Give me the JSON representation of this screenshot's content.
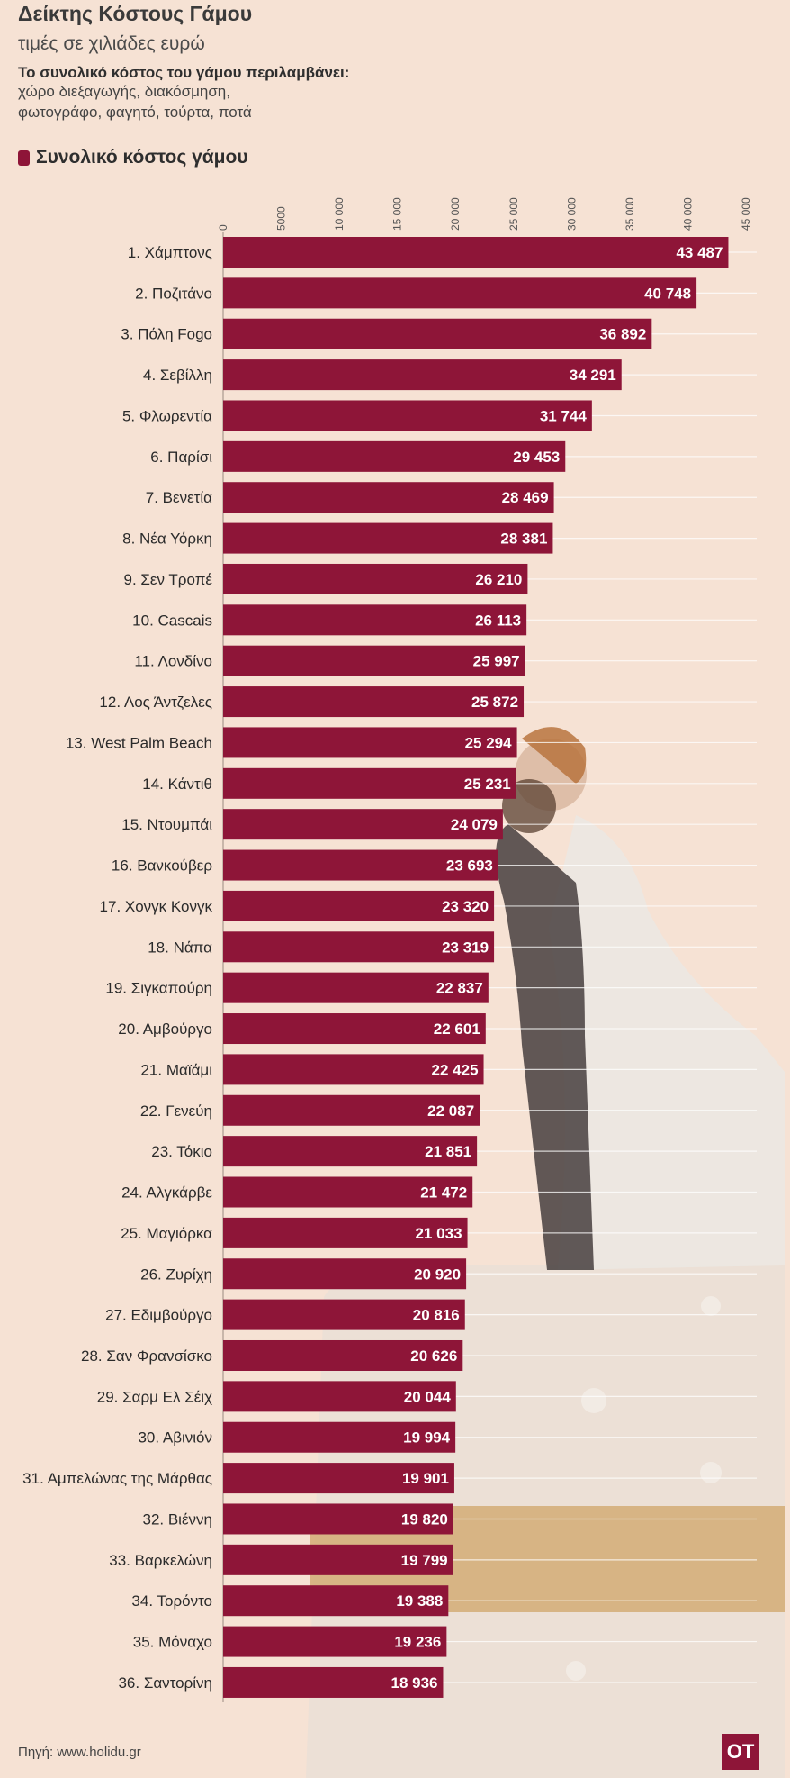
{
  "header": {
    "title": "Δείκτης Κόστους Γάμου",
    "subtitle": "τιμές σε χιλιάδες ευρώ",
    "note_head": "Το συνολικό κόστος του γάμου περιλαμβάνει:",
    "note_line1": "χώρο διεξαγωγής, διακόσμηση,",
    "note_line2": "φωτογράφο, φαγητό, τούρτα, ποτά"
  },
  "legend": {
    "label": "Συνολικό κόστος γάμου",
    "color": "#8e1538"
  },
  "chart_data": {
    "type": "bar",
    "orientation": "horizontal",
    "title": "Δείκτης Κόστους Γάμου",
    "subtitle": "τιμές σε χιλιάδες ευρώ",
    "xlim": [
      0,
      45000
    ],
    "ticks": [
      "0",
      "5000",
      "10 000",
      "15 000",
      "20 000",
      "25 000",
      "30 000",
      "35 000",
      "40 000",
      "45 000"
    ],
    "tick_values": [
      0,
      5000,
      10000,
      15000,
      20000,
      25000,
      30000,
      35000,
      40000,
      45000
    ],
    "series": [
      {
        "name": "Συνολικό κόστος γάμου",
        "color": "#8e1538"
      }
    ],
    "categories": [
      "1. Χάμπτονς",
      "2. Ποζιτάνο",
      "3. Πόλη Fogo",
      "4. Σεβίλλη",
      "5. Φλωρεντία",
      "6. Παρίσι",
      "7. Βενετία",
      "8. Νέα Υόρκη",
      "9. Σεν Τροπέ",
      "10. Cascais",
      "11. Λονδίνο",
      "12. Λος Άντζελες",
      "13. West Palm Beach",
      "14. Κάντιθ",
      "15. Ντουμπάι",
      "16. Βανκούβερ",
      "17. Χονγκ Κονγκ",
      "18. Νάπα",
      "19. Σιγκαπούρη",
      "20. Αμβούργο",
      "21. Μαϊάμι",
      "22. Γενεύη",
      "23. Τόκιο",
      "24. Αλγκάρβε",
      "25. Μαγιόρκα",
      "26. Ζυρίχη",
      "27. Εδιμβούργο",
      "28. Σαν Φρανσίσκο",
      "29. Σαρμ Ελ Σέιχ",
      "30. Αβινιόν",
      "31. Αμπελώνας της Μάρθας",
      "32. Βιέννη",
      "33. Βαρκελώνη",
      "34. Τορόντο",
      "35. Μόναχο",
      "36. Σαντορίνη"
    ],
    "values": [
      43487,
      40748,
      36892,
      34291,
      31744,
      29453,
      28469,
      28381,
      26210,
      26113,
      25997,
      25872,
      25294,
      25231,
      24079,
      23693,
      23320,
      23319,
      22837,
      22601,
      22425,
      22087,
      21851,
      21472,
      21033,
      20920,
      20816,
      20626,
      20044,
      19994,
      19901,
      19820,
      19799,
      19388,
      19236,
      18936
    ],
    "value_labels": [
      "43 487",
      "40 748",
      "36 892",
      "34 291",
      "31 744",
      "29 453",
      "28 469",
      "28 381",
      "26 210",
      "26 113",
      "25 997",
      "25 872",
      "25 294",
      "25 231",
      "24 079",
      "23 693",
      "23 320",
      "23 319",
      "22 837",
      "22 601",
      "22 425",
      "22 087",
      "21 851",
      "21 472",
      "21 033",
      "20 920",
      "20 816",
      "20 626",
      "20 044",
      "19 994",
      "19 901",
      "19 820",
      "19 799",
      "19 388",
      "19 236",
      "18 936"
    ]
  },
  "footer": {
    "source": "Πηγή: www.holidu.gr",
    "logo_text": "OT"
  }
}
